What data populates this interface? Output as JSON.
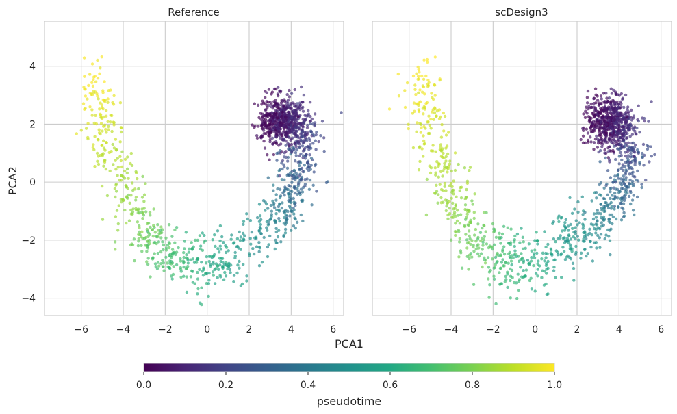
{
  "figure": {
    "xlabel": "PCA1",
    "ylabel": "PCA2",
    "colorbar": {
      "label": "pseudotime",
      "colormap": "viridis",
      "range": [
        0,
        1
      ],
      "ticks": [
        "0.0",
        "0.2",
        "0.4",
        "0.6",
        "0.8",
        "1.0"
      ]
    },
    "style": {
      "grid_color": "#cccccc",
      "spine_color": "#cccccc",
      "text_color": "#262626",
      "background": "#ffffff"
    }
  },
  "chart_data": [
    {
      "type": "scatter",
      "title": "Reference",
      "xlabel": "PCA1",
      "ylabel": "PCA2",
      "xlim": [
        -7.75,
        6.5
      ],
      "ylim": [
        -4.6,
        5.55
      ],
      "xticks": [
        -6,
        -4,
        -2,
        0,
        2,
        4,
        6
      ],
      "yticks": [
        -4,
        -2,
        0,
        2,
        4
      ],
      "grid": true,
      "color_by": "pseudotime",
      "point_count": 1500,
      "trajectory": [
        {
          "t": 0.0,
          "x": 3.0,
          "y": 2.1
        },
        {
          "t": 0.1,
          "x": 3.9,
          "y": 2.2
        },
        {
          "t": 0.2,
          "x": 4.6,
          "y": 1.4
        },
        {
          "t": 0.3,
          "x": 4.3,
          "y": 0.2
        },
        {
          "t": 0.4,
          "x": 3.7,
          "y": -0.9
        },
        {
          "t": 0.5,
          "x": 2.2,
          "y": -1.9
        },
        {
          "t": 0.58,
          "x": 0.6,
          "y": -2.7
        },
        {
          "t": 0.66,
          "x": -1.0,
          "y": -2.8
        },
        {
          "t": 0.74,
          "x": -2.5,
          "y": -2.2
        },
        {
          "t": 0.82,
          "x": -3.6,
          "y": -1.0
        },
        {
          "t": 0.88,
          "x": -4.4,
          "y": 0.6
        },
        {
          "t": 0.94,
          "x": -5.0,
          "y": 2.3
        },
        {
          "t": 1.0,
          "x": -5.6,
          "y": 3.8
        }
      ]
    },
    {
      "type": "scatter",
      "title": "scDesign3",
      "xlabel": "PCA1",
      "ylabel": "PCA2",
      "xlim": [
        -7.75,
        6.5
      ],
      "ylim": [
        -4.6,
        5.55
      ],
      "xticks": [
        -6,
        -4,
        -2,
        0,
        2,
        4,
        6
      ],
      "yticks": [
        -4,
        -2,
        0,
        2,
        4
      ],
      "grid": true,
      "color_by": "pseudotime",
      "point_count": 1500,
      "trajectory": [
        {
          "t": 0.0,
          "x": 3.0,
          "y": 2.1
        },
        {
          "t": 0.1,
          "x": 3.9,
          "y": 2.2
        },
        {
          "t": 0.2,
          "x": 4.6,
          "y": 1.2
        },
        {
          "t": 0.3,
          "x": 4.3,
          "y": 0.1
        },
        {
          "t": 0.4,
          "x": 3.7,
          "y": -0.9
        },
        {
          "t": 0.5,
          "x": 2.2,
          "y": -1.8
        },
        {
          "t": 0.58,
          "x": 0.5,
          "y": -2.6
        },
        {
          "t": 0.66,
          "x": -1.0,
          "y": -2.9
        },
        {
          "t": 0.74,
          "x": -2.5,
          "y": -2.3
        },
        {
          "t": 0.82,
          "x": -3.6,
          "y": -1.2
        },
        {
          "t": 0.88,
          "x": -4.4,
          "y": 0.4
        },
        {
          "t": 0.94,
          "x": -5.0,
          "y": 2.3
        },
        {
          "t": 1.0,
          "x": -5.6,
          "y": 3.6
        }
      ]
    }
  ]
}
